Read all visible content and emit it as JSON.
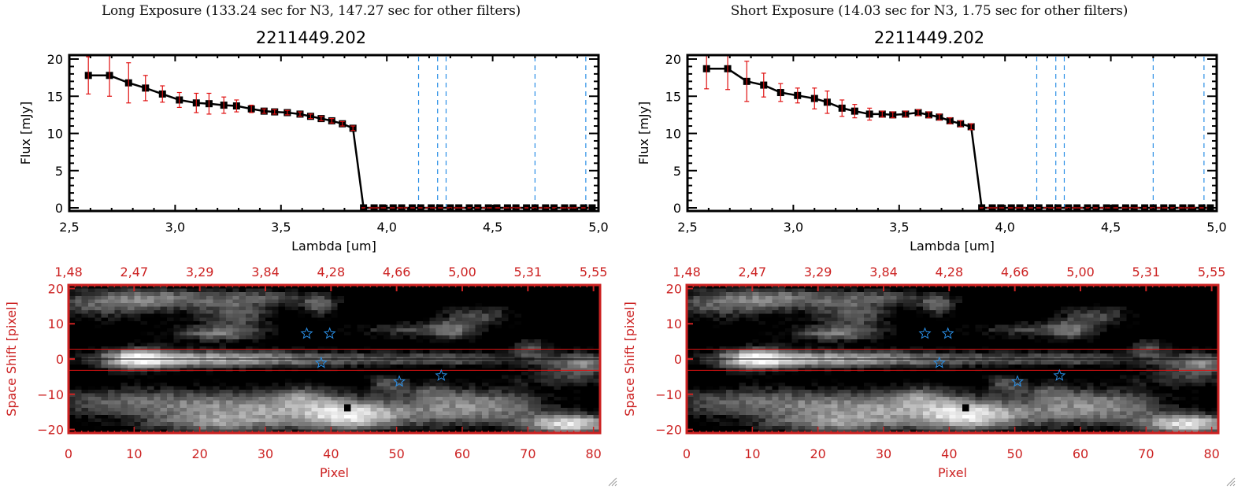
{
  "panels": [
    {
      "id": "long",
      "exposure_title": "Long Exposure (133.24 sec for N3, 147.27 sec for other filters)",
      "object_title": "2211449.202"
    },
    {
      "id": "short",
      "exposure_title": "Short Exposure (14.03 sec for N3, 1.75 sec for other filters)",
      "object_title": "2211449.202"
    }
  ],
  "colors": {
    "line": "#000000",
    "errorbar": "#e01010",
    "filter_lines": "#2a8fe6",
    "zero_line": "#e01010",
    "image_axis": "#cc2222",
    "stars": "#2a8fe6",
    "aperture_lines": "#dd1111"
  },
  "chart_data": [
    {
      "type": "line",
      "panel": "long",
      "title": "2211449.202",
      "xlabel": "Lambda [um]",
      "ylabel": "Flux [mJy]",
      "xlim": [
        2.5,
        5.0
      ],
      "ylim": [
        0,
        20
      ],
      "xticks": [
        "2.5",
        "3.0",
        "3.5",
        "4.0",
        "4.5",
        "5.0"
      ],
      "xtick_values": [
        2.5,
        3.0,
        3.5,
        4.0,
        4.5,
        5.0
      ],
      "yticks": [
        "0",
        "5",
        "10",
        "15",
        "20"
      ],
      "ytick_values": [
        0,
        5,
        10,
        15,
        20
      ],
      "filter_lines_x": [
        4.15,
        4.24,
        4.28,
        4.7,
        4.94
      ],
      "zero_line_y": 0,
      "series": [
        {
          "name": "flux",
          "x": [
            2.59,
            2.69,
            2.78,
            2.86,
            2.94,
            3.02,
            3.1,
            3.16,
            3.23,
            3.29,
            3.36,
            3.42,
            3.47,
            3.53,
            3.59,
            3.64,
            3.69,
            3.74,
            3.79,
            3.84,
            3.89,
            3.94,
            3.98,
            4.03,
            4.07,
            4.12,
            4.16,
            4.21,
            4.25,
            4.3,
            4.34,
            4.39,
            4.43,
            4.48,
            4.52,
            4.57,
            4.61,
            4.66,
            4.7,
            4.75,
            4.79,
            4.84,
            4.88,
            4.93,
            4.97
          ],
          "y": [
            17.8,
            17.8,
            16.8,
            16.1,
            15.3,
            14.5,
            14.1,
            14.0,
            13.8,
            13.7,
            13.3,
            13.0,
            12.9,
            12.8,
            12.6,
            12.3,
            12.0,
            11.7,
            11.3,
            10.7,
            0,
            0,
            0,
            0,
            0,
            0,
            0,
            0,
            0,
            0,
            0,
            0,
            0,
            0,
            0,
            0,
            0,
            0,
            0,
            0,
            0,
            0,
            0,
            0,
            0
          ],
          "yerr": [
            2.5,
            2.8,
            2.7,
            1.7,
            1.1,
            1.0,
            1.3,
            1.4,
            1.1,
            0.8,
            0.5,
            0.3,
            0.3,
            0.3,
            0.3,
            0.3,
            0.3,
            0.3,
            0.3,
            0.3,
            0,
            0,
            0,
            0,
            0,
            0,
            0,
            0,
            0,
            0,
            0,
            0,
            0,
            0,
            0,
            0,
            0,
            0,
            0,
            0,
            0,
            0,
            0,
            0,
            0
          ]
        }
      ]
    },
    {
      "type": "line",
      "panel": "short",
      "title": "2211449.202",
      "xlabel": "Lambda [um]",
      "ylabel": "Flux [mJy]",
      "xlim": [
        2.5,
        5.0
      ],
      "ylim": [
        0,
        20
      ],
      "xticks": [
        "2.5",
        "3.0",
        "3.5",
        "4.0",
        "4.5",
        "5.0"
      ],
      "xtick_values": [
        2.5,
        3.0,
        3.5,
        4.0,
        4.5,
        5.0
      ],
      "yticks": [
        "0",
        "5",
        "10",
        "15",
        "20"
      ],
      "ytick_values": [
        0,
        5,
        10,
        15,
        20
      ],
      "filter_lines_x": [
        4.15,
        4.24,
        4.28,
        4.7,
        4.94
      ],
      "zero_line_y": 0,
      "series": [
        {
          "name": "flux",
          "x": [
            2.59,
            2.69,
            2.78,
            2.86,
            2.94,
            3.02,
            3.1,
            3.16,
            3.23,
            3.29,
            3.36,
            3.42,
            3.47,
            3.53,
            3.59,
            3.64,
            3.69,
            3.74,
            3.79,
            3.84,
            3.89,
            3.94,
            3.98,
            4.03,
            4.07,
            4.12,
            4.16,
            4.21,
            4.25,
            4.3,
            4.34,
            4.39,
            4.43,
            4.48,
            4.52,
            4.57,
            4.61,
            4.66,
            4.7,
            4.75,
            4.79,
            4.84,
            4.88,
            4.93,
            4.97
          ],
          "y": [
            18.7,
            18.7,
            17.0,
            16.5,
            15.5,
            15.1,
            14.7,
            14.2,
            13.4,
            13.0,
            12.6,
            12.6,
            12.5,
            12.6,
            12.8,
            12.5,
            12.2,
            11.7,
            11.3,
            10.9,
            0,
            0,
            0,
            0,
            0,
            0,
            0,
            0,
            0,
            0,
            0,
            0,
            0,
            0,
            0,
            0,
            0,
            0,
            0,
            0,
            0,
            0,
            0,
            0,
            0
          ],
          "yerr": [
            2.7,
            2.8,
            2.7,
            1.6,
            1.2,
            1.0,
            1.4,
            1.5,
            1.1,
            0.9,
            0.8,
            0.4,
            0.4,
            0.4,
            0.4,
            0.4,
            0.4,
            0.4,
            0.4,
            0.4,
            0,
            0,
            0,
            0,
            0,
            0,
            0,
            0,
            0,
            0,
            0,
            0,
            0,
            0,
            0,
            0,
            0,
            0,
            0,
            0,
            0,
            0,
            0,
            0,
            0
          ]
        }
      ]
    },
    {
      "type": "heatmap",
      "panel": "long",
      "xlabel": "Pixel",
      "ylabel": "Space Shift [pixel]",
      "xlim": [
        0,
        81
      ],
      "ylim": [
        -21,
        21
      ],
      "xticks": [
        "0",
        "10",
        "20",
        "30",
        "40",
        "50",
        "60",
        "70",
        "80"
      ],
      "xtick_values": [
        0,
        10,
        20,
        30,
        40,
        50,
        60,
        70,
        80
      ],
      "yticks": [
        "-20",
        "-10",
        "0",
        "10",
        "20"
      ],
      "ytick_values": [
        -20,
        -10,
        0,
        10,
        20
      ],
      "top_axis_ticks": [
        "1.48",
        "2.47",
        "3.29",
        "3.84",
        "4.28",
        "4.66",
        "5.00",
        "5.31",
        "5.55"
      ],
      "aperture_y": [
        2.8,
        -3.2
      ],
      "center_line_y": 0,
      "stars": [
        {
          "x": 36.3,
          "y": 7.2
        },
        {
          "x": 39.8,
          "y": 7.2
        },
        {
          "x": 38.5,
          "y": -1.1
        },
        {
          "x": 50.4,
          "y": -6.4
        },
        {
          "x": 56.8,
          "y": -4.7
        }
      ]
    },
    {
      "type": "heatmap",
      "panel": "short",
      "xlabel": "Pixel",
      "ylabel": "Space Shift [pixel]",
      "xlim": [
        0,
        81
      ],
      "ylim": [
        -21,
        21
      ],
      "xticks": [
        "0",
        "10",
        "20",
        "30",
        "40",
        "50",
        "60",
        "70",
        "80"
      ],
      "xtick_values": [
        0,
        10,
        20,
        30,
        40,
        50,
        60,
        70,
        80
      ],
      "yticks": [
        "-20",
        "-10",
        "0",
        "10",
        "20"
      ],
      "ytick_values": [
        -20,
        -10,
        0,
        10,
        20
      ],
      "top_axis_ticks": [
        "1.48",
        "2.47",
        "3.29",
        "3.84",
        "4.28",
        "4.66",
        "5.00",
        "5.31",
        "5.55"
      ],
      "aperture_y": [
        2.8,
        -3.2
      ],
      "center_line_y": 0,
      "stars": [
        {
          "x": 36.3,
          "y": 7.2
        },
        {
          "x": 39.8,
          "y": 7.2
        },
        {
          "x": 38.5,
          "y": -1.1
        },
        {
          "x": 50.4,
          "y": -6.4
        },
        {
          "x": 56.8,
          "y": -4.7
        }
      ]
    }
  ]
}
